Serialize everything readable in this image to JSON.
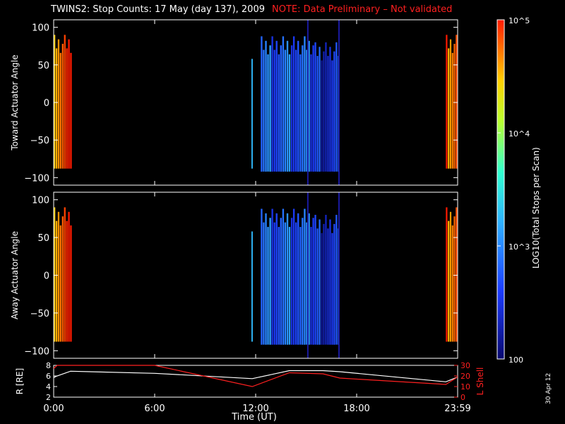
{
  "title": "TWINS2: Stop Counts: 17 May (day 137), 2009",
  "note": "NOTE: Data Preliminary – Not validated",
  "date_stamp": "30 Apr 12",
  "colorbar": {
    "label": "LOG10(Total Stops per Scan)",
    "ticks": [
      "10^5",
      "10^4",
      "10^3",
      "100"
    ],
    "scale": "log",
    "range": [
      100,
      100000
    ]
  },
  "chart_data": [
    {
      "type": "heatmap",
      "ylabel": "Toward Actuator Angle",
      "ylim": [
        -110,
        110
      ],
      "yticks": [
        100,
        50,
        0,
        -50,
        -100
      ],
      "xlim_hours": [
        0,
        24
      ],
      "bands": [
        {
          "t_start": 0.0,
          "t_end": 1.1,
          "angle_min": -88,
          "angle_max": 90,
          "log_count": 4.8
        },
        {
          "t_start": 11.75,
          "t_end": 11.85,
          "angle_min": -88,
          "angle_max": 58,
          "log_count": 3.4
        },
        {
          "t_start": 12.3,
          "t_end": 15.5,
          "angle_min": -92,
          "angle_max": 88,
          "log_count": 2.8
        },
        {
          "t_start": 15.5,
          "t_end": 17.0,
          "angle_min": -92,
          "angle_max": 80,
          "log_count": 2.5
        },
        {
          "t_start": 23.3,
          "t_end": 24.0,
          "angle_min": -88,
          "angle_max": 90,
          "log_count": 4.85
        }
      ]
    },
    {
      "type": "heatmap",
      "ylabel": "Away Actuator Angle",
      "ylim": [
        -110,
        110
      ],
      "yticks": [
        100,
        50,
        0,
        -50,
        -100
      ],
      "xlim_hours": [
        0,
        24
      ],
      "bands": [
        {
          "t_start": 0.0,
          "t_end": 1.1,
          "angle_min": -88,
          "angle_max": 90,
          "log_count": 4.8
        },
        {
          "t_start": 11.75,
          "t_end": 11.85,
          "angle_min": -88,
          "angle_max": 58,
          "log_count": 3.4
        },
        {
          "t_start": 12.3,
          "t_end": 15.5,
          "angle_min": -92,
          "angle_max": 88,
          "log_count": 2.8
        },
        {
          "t_start": 15.5,
          "t_end": 17.0,
          "angle_min": -92,
          "angle_max": 80,
          "log_count": 2.5
        },
        {
          "t_start": 23.3,
          "t_end": 24.0,
          "angle_min": -88,
          "angle_max": 90,
          "log_count": 4.85
        }
      ]
    },
    {
      "type": "line",
      "ylabel_left": "R [RE]",
      "ylabel_right": "L Shell",
      "ylim_left": [
        2,
        8
      ],
      "ylim_right": [
        0,
        30
      ],
      "yticks_left": [
        8,
        6,
        4,
        2
      ],
      "yticks_right": [
        30,
        20,
        10,
        0
      ],
      "x_hours": [
        0,
        0.2,
        1.0,
        6.0,
        11.8,
        14.0,
        16.0,
        17.0,
        23.3,
        24.0
      ],
      "series": [
        {
          "axis": "left",
          "values": [
            5.7,
            6.0,
            6.9,
            6.5,
            5.5,
            7.0,
            7.0,
            6.8,
            4.9,
            5.8
          ]
        },
        {
          "axis": "right",
          "values": [
            27,
            30,
            30,
            30,
            10,
            23,
            22,
            18,
            12,
            19
          ]
        }
      ]
    }
  ],
  "x_axis": {
    "label": "Time (UT)",
    "ticks": [
      "0:00",
      "6:00",
      "12:00",
      "18:00",
      "23:59"
    ],
    "tick_hours": [
      0,
      6,
      12,
      18,
      24
    ]
  }
}
